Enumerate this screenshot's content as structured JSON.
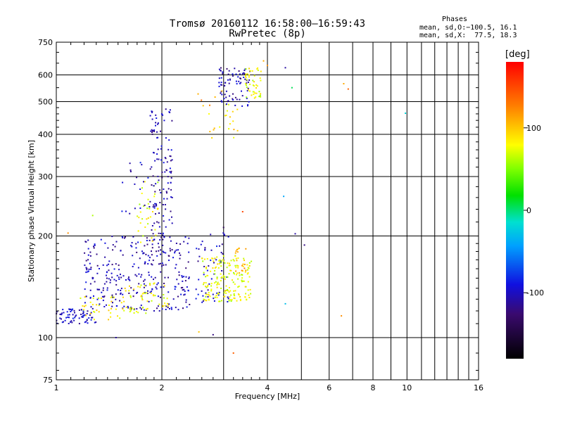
{
  "title_line1": "Tromsø 20160112 16:58:00–16:59:43",
  "title_line2": "RwPretec (8p)",
  "stats": {
    "title": "Phases",
    "o_line": "mean, sd,O:−100.5, 16.1",
    "x_line": "mean, sd,X:  77.5, 18.3"
  },
  "chart_data": {
    "type": "scatter",
    "xlabel": "Frequency [MHz]",
    "ylabel": "Stationary phase Virtual Height [km]",
    "x_scale": "log",
    "y_scale": "log",
    "xlim": [
      1,
      16
    ],
    "ylim": [
      75,
      750
    ],
    "x_ticks": [
      1,
      2,
      4,
      6,
      8,
      10,
      16
    ],
    "x_tick_labels": [
      "1",
      "2",
      "4",
      "6",
      "8",
      "10",
      "16"
    ],
    "x_minor_ticks": [
      3,
      5,
      7,
      9,
      11,
      12,
      13,
      14,
      15
    ],
    "y_ticks": [
      75,
      100,
      200,
      300,
      400,
      500,
      600,
      750
    ],
    "y_tick_labels": [
      "75",
      "100",
      "200",
      "300",
      "400",
      "500",
      "600",
      "750"
    ],
    "grid": true,
    "colorbar": {
      "unit": "[deg]",
      "range": [
        -180,
        180
      ],
      "tick_values": [
        100,
        0,
        -100
      ],
      "tick_labels": [
        "100",
        "0",
        "-100"
      ]
    },
    "clusters": [
      {
        "f": [
          1.0,
          1.3
        ],
        "h": [
          110,
          122
        ],
        "phase": -100,
        "n": 70
      },
      {
        "f": [
          1.15,
          1.55
        ],
        "h": [
          112,
          135
        ],
        "phase": 85,
        "n": 35
      },
      {
        "f": [
          1.2,
          2.4
        ],
        "h": [
          120,
          200
        ],
        "phase": -105,
        "n": 320
      },
      {
        "f": [
          1.5,
          2.1
        ],
        "h": [
          118,
          145
        ],
        "phase": 80,
        "n": 60
      },
      {
        "f": [
          1.7,
          1.95
        ],
        "h": [
          190,
          290
        ],
        "phase": 75,
        "n": 35
      },
      {
        "f": [
          1.5,
          1.85
        ],
        "h": [
          220,
          330
        ],
        "phase": -100,
        "n": 18
      },
      {
        "f": [
          1.85,
          2.15
        ],
        "h": [
          200,
          480
        ],
        "phase": -105,
        "n": 120
      },
      {
        "f": [
          2.5,
          3.1
        ],
        "h": [
          125,
          210
        ],
        "phase": -100,
        "n": 60
      },
      {
        "f": [
          2.6,
          3.6
        ],
        "h": [
          128,
          175
        ],
        "phase": 75,
        "n": 180
      },
      {
        "f": [
          3.2,
          3.5
        ],
        "h": [
          155,
          185
        ],
        "phase": 105,
        "n": 20
      },
      {
        "f": [
          2.7,
          3.3
        ],
        "h": [
          390,
          530
        ],
        "phase": 90,
        "n": 20
      },
      {
        "f": [
          2.9,
          3.6
        ],
        "h": [
          480,
          640
        ],
        "phase": -105,
        "n": 80
      },
      {
        "f": [
          3.45,
          3.85
        ],
        "h": [
          510,
          630
        ],
        "phase": 75,
        "n": 45
      },
      {
        "f": [
          2.5,
          3.0
        ],
        "h": [
          480,
          545
        ],
        "phase": 115,
        "n": 6
      }
    ],
    "points": [
      {
        "f": 4.5,
        "h": 630,
        "phase": -110
      },
      {
        "f": 4.7,
        "h": 550,
        "phase": 5
      },
      {
        "f": 4.45,
        "h": 262,
        "phase": -40
      },
      {
        "f": 4.8,
        "h": 203,
        "phase": -110
      },
      {
        "f": 5.1,
        "h": 188,
        "phase": -120
      },
      {
        "f": 4.5,
        "h": 126,
        "phase": -30
      },
      {
        "f": 6.6,
        "h": 565,
        "phase": 110
      },
      {
        "f": 6.8,
        "h": 545,
        "phase": 140
      },
      {
        "f": 6.5,
        "h": 116,
        "phase": 120
      },
      {
        "f": 9.9,
        "h": 462,
        "phase": -20
      },
      {
        "f": 3.2,
        "h": 90,
        "phase": 140
      },
      {
        "f": 2.8,
        "h": 102,
        "phase": -120
      },
      {
        "f": 1.48,
        "h": 100,
        "phase": -110
      },
      {
        "f": 1.08,
        "h": 204,
        "phase": 120
      },
      {
        "f": 3.4,
        "h": 236,
        "phase": 150
      },
      {
        "f": 3.0,
        "h": 212,
        "phase": -140
      },
      {
        "f": 2.55,
        "h": 104,
        "phase": 100
      },
      {
        "f": 1.27,
        "h": 230,
        "phase": 60
      },
      {
        "f": 3.9,
        "h": 660,
        "phase": 110
      },
      {
        "f": 4.0,
        "h": 640,
        "phase": 120
      }
    ]
  }
}
